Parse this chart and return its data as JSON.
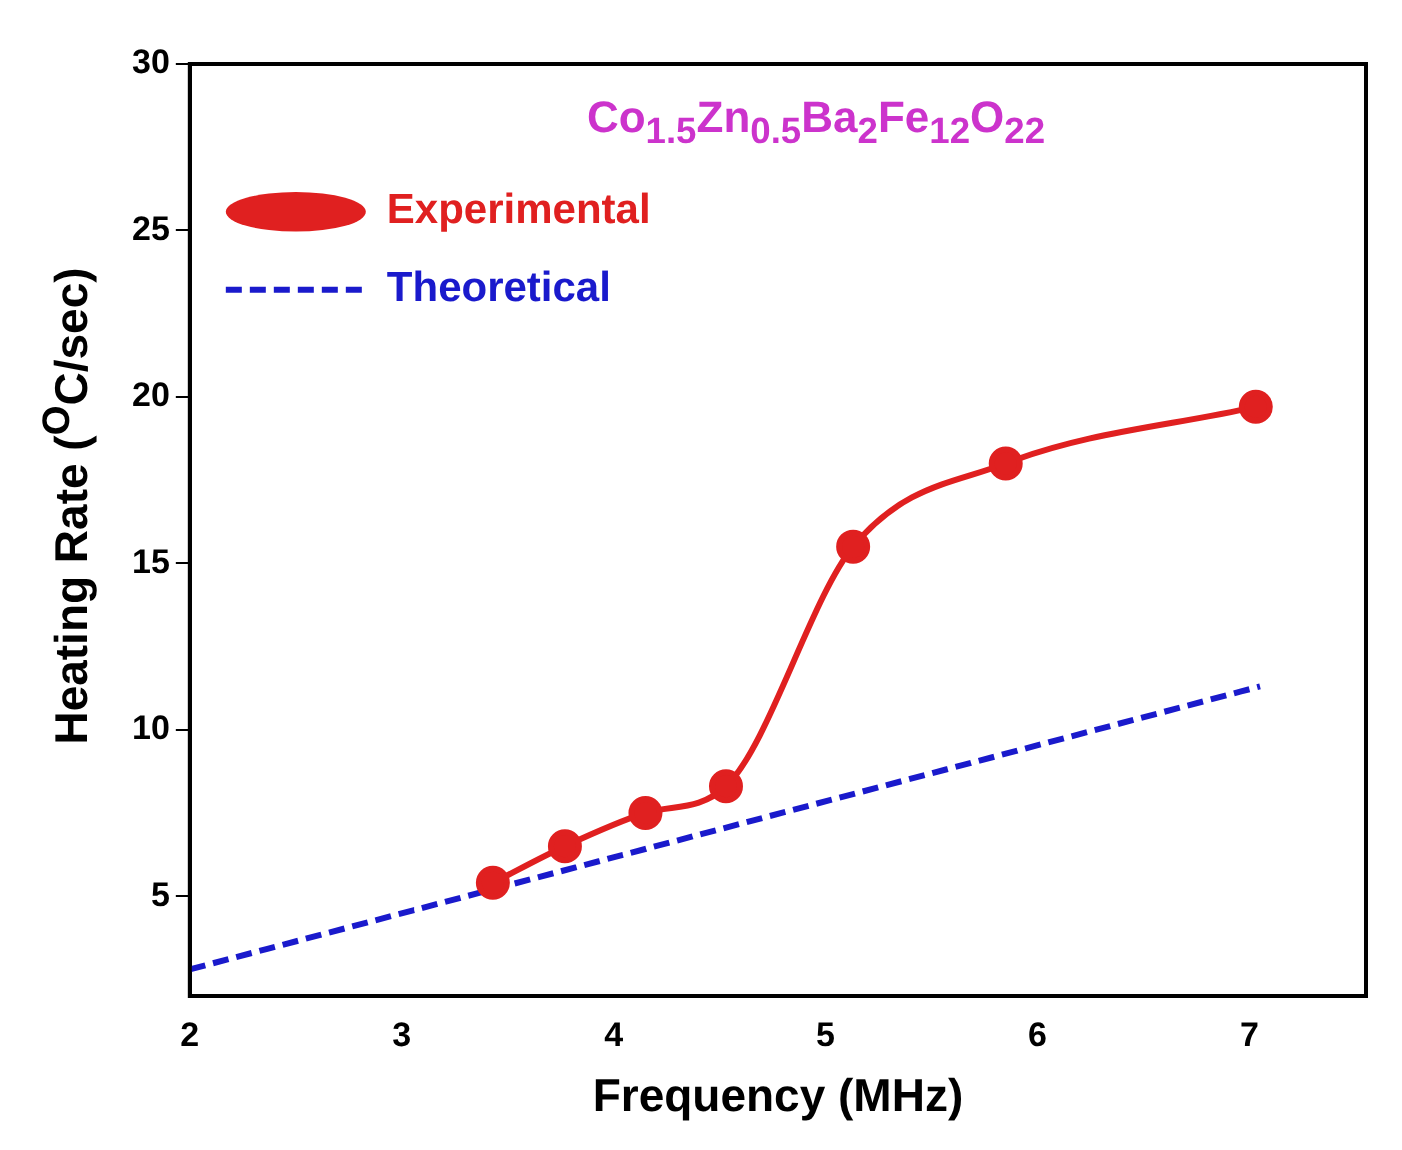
{
  "chart_data": {
    "type": "line",
    "xlabel": "Frequency (MHz)",
    "ylabel": "Heating Rate ($^{O}$C/sec)",
    "annotations": [
      "Co$_{1.5}$Zn$_{0.5}$Ba$_{2}$Fe$_{12}$O$_{22}$"
    ],
    "xlim": [
      2,
      7.55
    ],
    "ylim": [
      2,
      30
    ],
    "xticks": [
      2,
      3,
      4,
      5,
      6,
      7
    ],
    "yticks": [
      5,
      10,
      15,
      20,
      25,
      30
    ],
    "grid": false,
    "legend": "top left",
    "series": [
      {
        "name": "Experimental",
        "color": "#e02020",
        "marker": "circle",
        "line_style": "solid",
        "x": [
          3.43,
          3.77,
          4.15,
          4.53,
          5.13,
          5.85,
          7.03
        ],
        "values": [
          5.4,
          6.5,
          7.5,
          8.3,
          15.5,
          18,
          19.7
        ]
      },
      {
        "name": "Theoretical",
        "color": "#1a1acc",
        "marker": "none",
        "line_style": "dashed",
        "x": [
          2,
          7.05
        ],
        "values": [
          2.8,
          11.3
        ]
      }
    ]
  }
}
